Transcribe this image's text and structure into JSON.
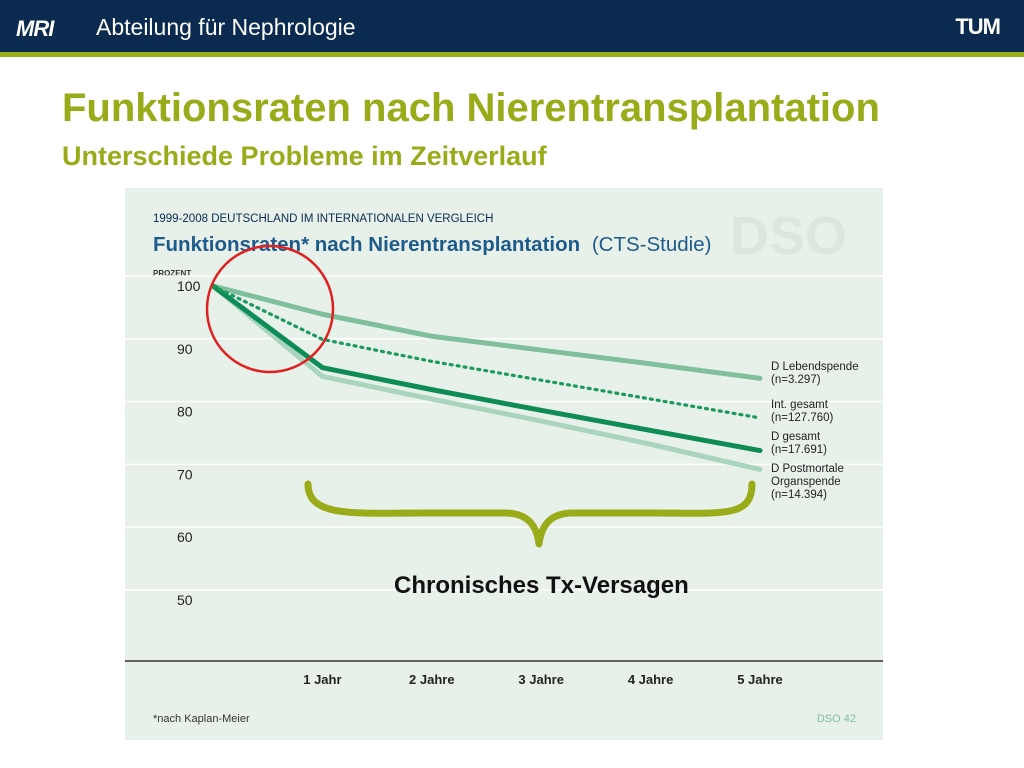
{
  "header": {
    "logo_left": "MRI",
    "department": "Abteilung für Nephrologie",
    "logo_right": "TUM"
  },
  "slide": {
    "title": "Funktionsraten nach Nierentransplantation",
    "subtitle": "Unterschiede Probleme im Zeitverlauf",
    "annotation_label": "Chronisches  Tx-Versagen"
  },
  "colors": {
    "header_bg": "#0a2a50",
    "accent_olive": "#9aab1a",
    "chart_bg": "#e8f1e9",
    "circle_red": "#e02020",
    "series_live": "#7fbf9d",
    "series_intl": "#1a9a5c",
    "series_d_total": "#0f8c55",
    "series_post": "#a9d5bd"
  },
  "chart_data": {
    "type": "line",
    "supertitle": "1999-2008 DEUTSCHLAND IM INTERNATIONALEN VERGLEICH",
    "title_main": "Funktionsraten* nach Nierentransplantation",
    "title_suffix": "(CTS-Studie)",
    "watermark": "DSO",
    "ylabel": "PROZENT",
    "ylim": [
      45,
      102
    ],
    "yticks": [
      100,
      90,
      80,
      70,
      60,
      50
    ],
    "ytick_labels": [
      "100",
      "90",
      "80",
      "70",
      "60",
      "50"
    ],
    "x": [
      0,
      1,
      2,
      3,
      4,
      5
    ],
    "xtick_labels": [
      "1 Jahr",
      "2 Jahre",
      "3 Jahre",
      "4 Jahre",
      "5 Jahre"
    ],
    "grid": true,
    "series": [
      {
        "name": "D Lebendspende",
        "n": "(n=3.297)",
        "values": [
          100,
          95.5,
          92.0,
          89.8,
          87.6,
          85.3
        ],
        "style": "solid"
      },
      {
        "name": "Int. gesamt",
        "n": "(n=127.760)",
        "values": [
          100,
          91.5,
          88.0,
          85.0,
          82.0,
          79.0
        ],
        "style": "dotted"
      },
      {
        "name": "D gesamt",
        "n": "(n=17.691)",
        "values": [
          100,
          87.0,
          83.5,
          80.2,
          77.0,
          73.8
        ],
        "style": "solid"
      },
      {
        "name": "D Postmortale Organspende",
        "n": "(n=14.394)",
        "values": [
          100,
          85.6,
          82.0,
          78.5,
          74.8,
          70.8
        ],
        "style": "solid"
      }
    ],
    "legend_placement": "right",
    "footnote": "*nach Kaplan-Meier",
    "source": "DSO 42"
  }
}
